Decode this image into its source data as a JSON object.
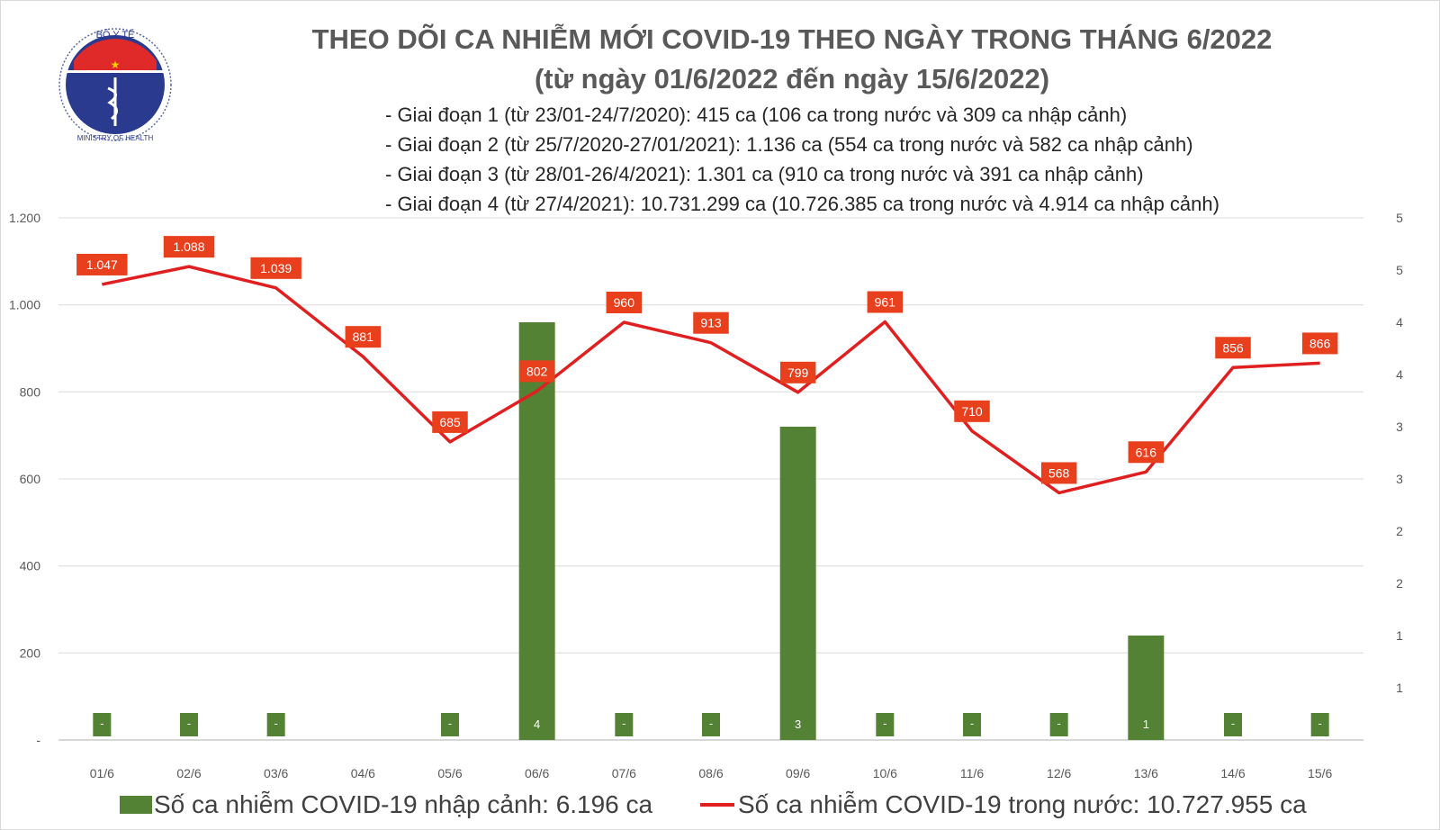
{
  "header": {
    "logo_text_top": "BỘ Y TẾ",
    "logo_text_bottom": "MINISTRY OF HEALTH",
    "title": "THEO DÕI CA NHIỄM MỚI COVID-19 THEO NGÀY TRONG THÁNG 6/2022",
    "subtitle": "(từ ngày 01/6/2022 đến ngày 15/6/2022)",
    "phases": [
      "- Giai đoạn 1 (từ 23/01-24/7/2020): 415 ca (106 ca trong nước và 309 ca nhập cảnh)",
      "- Giai đoạn 2 (từ 25/7/2020-27/01/2021): 1.136 ca (554 ca trong nước và 582 ca nhập cảnh)",
      "- Giai đoạn 3 (từ 28/01-26/4/2021): 1.301 ca (910 ca trong nước và 391 ca nhập cảnh)",
      "- Giai đoạn 4 (từ 27/4/2021): 10.731.299 ca (10.726.385 ca trong nước và 4.914 ca nhập cảnh)"
    ]
  },
  "chart_data": {
    "type": "bar+line",
    "categories": [
      "01/6",
      "02/6",
      "03/6",
      "04/6",
      "05/6",
      "06/6",
      "07/6",
      "08/6",
      "09/6",
      "10/6",
      "11/6",
      "12/6",
      "13/6",
      "14/6",
      "15/6"
    ],
    "series": [
      {
        "name": "Số ca nhiễm COVID-19 nhập cảnh: 6.196 ca",
        "type": "bar",
        "axis": "right",
        "color": "#548235",
        "values": [
          0,
          0,
          0,
          null,
          0,
          4,
          0,
          0,
          3,
          0,
          0,
          0,
          1,
          0,
          0
        ],
        "labels": [
          "-",
          "-",
          "-",
          "",
          "-",
          "4",
          "-",
          "-",
          "3",
          "-",
          "-",
          "-",
          "1",
          "-",
          "-"
        ]
      },
      {
        "name": "Số ca nhiễm COVID-19 trong nước: 10.727.955 ca",
        "type": "line",
        "axis": "left",
        "color": "#e02020",
        "values": [
          1047,
          1088,
          1039,
          881,
          685,
          802,
          960,
          913,
          799,
          961,
          710,
          568,
          616,
          856,
          866
        ],
        "labels": [
          "1.047",
          "1.088",
          "1.039",
          "881",
          "685",
          "802",
          "960",
          "913",
          "799",
          "961",
          "710",
          "568",
          "616",
          "856",
          "866"
        ]
      }
    ],
    "y_left": {
      "range": [
        0,
        1200
      ],
      "ticks": [
        "-",
        "200",
        "400",
        "600",
        "800",
        "1.000",
        "1.200"
      ]
    },
    "y_right": {
      "range": [
        0,
        5
      ],
      "ticks": [
        "-",
        "1",
        "1",
        "2",
        "2",
        "3",
        "3",
        "4",
        "4",
        "5",
        "5"
      ]
    },
    "grid": true,
    "legend": "bottom",
    "label_box_color": "#e8401c"
  }
}
